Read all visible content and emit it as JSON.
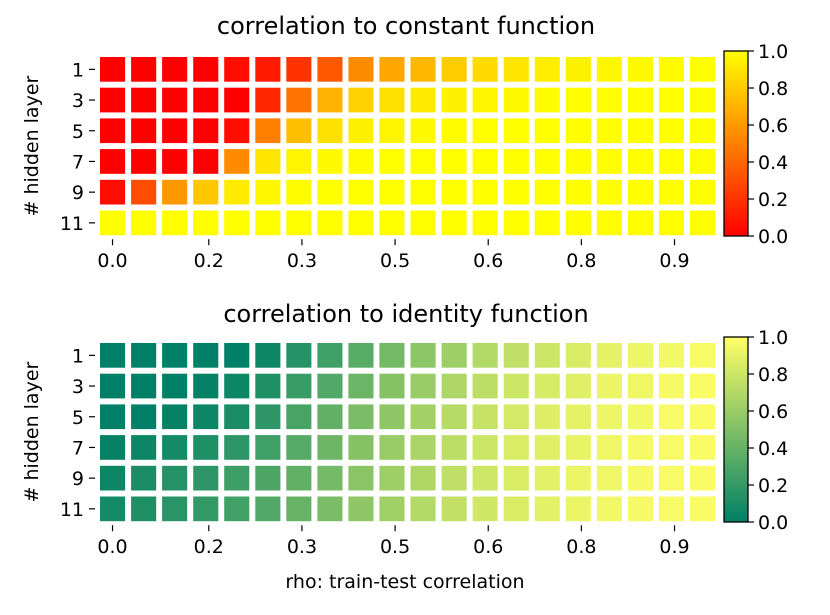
{
  "chart_data": [
    {
      "type": "heatmap",
      "title": "correlation to constant function",
      "ylabel": "# hidden layer",
      "xlabel": "",
      "y_categories": [
        "1",
        "3",
        "5",
        "7",
        "9",
        "11"
      ],
      "x_tick_labels": [
        "0.0",
        "0.2",
        "0.3",
        "0.5",
        "0.6",
        "0.8",
        "0.9"
      ],
      "colormap": "autumn",
      "colorbar": {
        "range": [
          0.0,
          1.0
        ],
        "tick_labels": [
          "0.0",
          "0.2",
          "0.4",
          "0.6",
          "0.8",
          "1.0"
        ]
      },
      "values": [
        [
          0.0,
          0.0,
          0.0,
          0.0,
          0.05,
          0.1,
          0.2,
          0.35,
          0.55,
          0.65,
          0.72,
          0.8,
          0.86,
          0.9,
          0.93,
          0.95,
          0.97,
          0.98,
          0.99,
          1.0
        ],
        [
          0.0,
          0.0,
          0.0,
          0.0,
          0.0,
          0.15,
          0.45,
          0.7,
          0.82,
          0.88,
          0.92,
          0.95,
          0.96,
          0.98,
          0.99,
          1.0,
          1.0,
          1.0,
          1.0,
          1.0
        ],
        [
          0.0,
          0.0,
          0.0,
          0.0,
          0.05,
          0.5,
          0.75,
          0.88,
          0.94,
          0.96,
          0.98,
          0.99,
          1.0,
          1.0,
          1.0,
          1.0,
          1.0,
          1.0,
          1.0,
          1.0
        ],
        [
          0.0,
          0.0,
          0.0,
          0.0,
          0.55,
          0.9,
          0.96,
          0.98,
          0.99,
          1.0,
          1.0,
          1.0,
          1.0,
          1.0,
          1.0,
          1.0,
          1.0,
          1.0,
          1.0,
          1.0
        ],
        [
          0.05,
          0.3,
          0.6,
          0.78,
          0.92,
          0.97,
          0.99,
          1.0,
          1.0,
          1.0,
          1.0,
          1.0,
          1.0,
          1.0,
          1.0,
          1.0,
          1.0,
          1.0,
          1.0,
          1.0
        ],
        [
          1.0,
          1.0,
          1.0,
          1.0,
          1.0,
          1.0,
          1.0,
          1.0,
          1.0,
          1.0,
          1.0,
          1.0,
          1.0,
          1.0,
          1.0,
          1.0,
          1.0,
          1.0,
          1.0,
          1.0
        ]
      ]
    },
    {
      "type": "heatmap",
      "title": "correlation to identity function",
      "ylabel": "# hidden layer",
      "xlabel": "rho: train-test correlation",
      "y_categories": [
        "1",
        "3",
        "5",
        "7",
        "9",
        "11"
      ],
      "x_tick_labels": [
        "0.0",
        "0.2",
        "0.3",
        "0.5",
        "0.6",
        "0.8",
        "0.9"
      ],
      "colormap": "summer",
      "colorbar": {
        "range": [
          0.0,
          1.0
        ],
        "tick_labels": [
          "0.0",
          "0.2",
          "0.4",
          "0.6",
          "0.8",
          "1.0"
        ]
      },
      "values": [
        [
          0.0,
          0.0,
          0.0,
          0.0,
          0.0,
          0.05,
          0.15,
          0.25,
          0.35,
          0.45,
          0.55,
          0.62,
          0.7,
          0.75,
          0.8,
          0.85,
          0.9,
          0.93,
          0.95,
          0.97
        ],
        [
          0.0,
          0.0,
          0.0,
          0.02,
          0.05,
          0.12,
          0.22,
          0.32,
          0.42,
          0.52,
          0.6,
          0.68,
          0.74,
          0.8,
          0.84,
          0.88,
          0.92,
          0.94,
          0.96,
          0.98
        ],
        [
          0.0,
          0.0,
          0.02,
          0.05,
          0.1,
          0.18,
          0.28,
          0.38,
          0.48,
          0.56,
          0.64,
          0.72,
          0.78,
          0.83,
          0.87,
          0.9,
          0.93,
          0.95,
          0.97,
          0.98
        ],
        [
          0.02,
          0.05,
          0.08,
          0.12,
          0.18,
          0.25,
          0.34,
          0.43,
          0.52,
          0.6,
          0.67,
          0.74,
          0.8,
          0.85,
          0.88,
          0.91,
          0.94,
          0.96,
          0.97,
          0.98
        ],
        [
          0.05,
          0.1,
          0.14,
          0.18,
          0.24,
          0.3,
          0.38,
          0.46,
          0.54,
          0.62,
          0.69,
          0.75,
          0.81,
          0.85,
          0.89,
          0.92,
          0.94,
          0.96,
          0.97,
          0.98
        ],
        [
          0.08,
          0.12,
          0.16,
          0.2,
          0.26,
          0.32,
          0.4,
          0.48,
          0.56,
          0.63,
          0.7,
          0.76,
          0.82,
          0.86,
          0.89,
          0.92,
          0.95,
          0.96,
          0.97,
          0.98
        ]
      ]
    }
  ]
}
